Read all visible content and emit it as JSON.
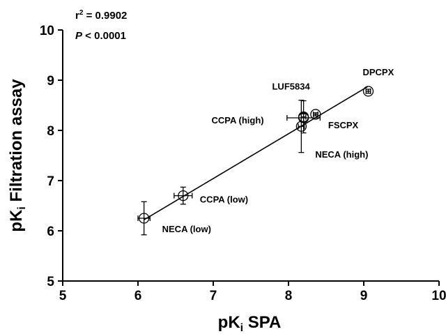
{
  "chart_data": {
    "type": "scatter",
    "title": "",
    "xlabel": {
      "prefix": "pK",
      "sub": "i",
      "suffix": " SPA"
    },
    "ylabel": {
      "prefix": "pK",
      "sub": "i",
      "suffix": " Filtration assay"
    },
    "xlim": [
      5,
      10
    ],
    "ylim": [
      5,
      10
    ],
    "xticks": [
      "5",
      "6",
      "7",
      "8",
      "9",
      "10"
    ],
    "yticks": [
      "5",
      "6",
      "7",
      "8",
      "9",
      "10"
    ],
    "grid": false,
    "stats": {
      "r2_prefix": "r",
      "r2_sup": "2",
      "r2_value": " = 0.9902",
      "p_symbol": "P",
      "p_value": " < 0.0001"
    },
    "regression_line": {
      "x": [
        6.08,
        9.05
      ],
      "y": [
        6.22,
        8.87
      ]
    },
    "points": [
      {
        "label": "NECA (low)",
        "x": 6.08,
        "y": 6.25,
        "xerr": 0.08,
        "yerr": 0.33
      },
      {
        "label": "CCPA (low)",
        "x": 6.6,
        "y": 6.7,
        "xerr": 0.12,
        "yerr": 0.17
      },
      {
        "label": "NECA (high)",
        "x": 8.17,
        "y": 8.08,
        "xerr": 0.04,
        "yerr": 0.52
      },
      {
        "label": "CCPA (high)",
        "x": 8.2,
        "y": 8.25,
        "xerr": 0.22,
        "yerr": 0.08
      },
      {
        "label": "LUF5834",
        "x": 8.2,
        "y": 8.27,
        "xerr": 0.03,
        "yerr": 0.32
      },
      {
        "label": "FSCPX",
        "x": 8.36,
        "y": 8.32,
        "xerr": 0.03,
        "yerr": 0.03
      },
      {
        "label": "DPCPX",
        "x": 9.06,
        "y": 8.78,
        "xerr": 0.03,
        "yerr": 0.04
      }
    ]
  }
}
